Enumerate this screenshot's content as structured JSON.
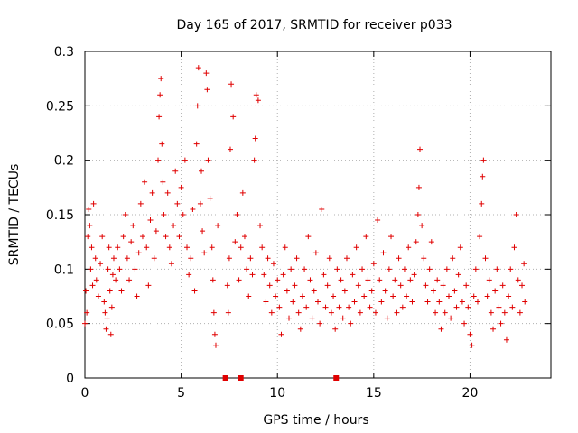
{
  "chart_data": {
    "type": "scatter",
    "title": "Day 165 of 2017, SRMTID for receiver p033",
    "xlabel": "GPS time / hours",
    "ylabel": "SRMTID / TECUs",
    "xlim": [
      0,
      24.2
    ],
    "ylim": [
      0,
      0.3
    ],
    "xticks": [
      0,
      5,
      10,
      15,
      20
    ],
    "xtick_labels": [
      "0",
      "5",
      "10",
      "15",
      "20"
    ],
    "yticks": [
      0,
      0.05,
      0.1,
      0.15,
      0.2,
      0.25,
      0.3
    ],
    "ytick_labels": [
      "0",
      "0.05",
      "0.1",
      "0.15",
      "0.2",
      "0.25",
      "0.3"
    ],
    "grid": true,
    "marker": "+",
    "color": "#e00000",
    "series": [
      {
        "name": "SRMTID",
        "points": [
          [
            0.0,
            0.05
          ],
          [
            0.05,
            0.08
          ],
          [
            0.1,
            0.06
          ],
          [
            0.15,
            0.13
          ],
          [
            0.2,
            0.155
          ],
          [
            0.25,
            0.14
          ],
          [
            0.3,
            0.1
          ],
          [
            0.35,
            0.12
          ],
          [
            0.4,
            0.085
          ],
          [
            0.45,
            0.16
          ],
          [
            0.55,
            0.11
          ],
          [
            0.6,
            0.09
          ],
          [
            0.7,
            0.075
          ],
          [
            0.8,
            0.105
          ],
          [
            0.9,
            0.13
          ],
          [
            1.0,
            0.07
          ],
          [
            1.05,
            0.06
          ],
          [
            1.1,
            0.045
          ],
          [
            1.15,
            0.055
          ],
          [
            1.2,
            0.1
          ],
          [
            1.25,
            0.12
          ],
          [
            1.3,
            0.08
          ],
          [
            1.35,
            0.04
          ],
          [
            1.4,
            0.065
          ],
          [
            1.45,
            0.095
          ],
          [
            1.5,
            0.11
          ],
          [
            1.6,
            0.09
          ],
          [
            1.7,
            0.12
          ],
          [
            1.8,
            0.1
          ],
          [
            1.9,
            0.08
          ],
          [
            2.0,
            0.13
          ],
          [
            2.1,
            0.15
          ],
          [
            2.2,
            0.11
          ],
          [
            2.3,
            0.09
          ],
          [
            2.4,
            0.125
          ],
          [
            2.5,
            0.14
          ],
          [
            2.6,
            0.1
          ],
          [
            2.7,
            0.075
          ],
          [
            2.8,
            0.115
          ],
          [
            2.9,
            0.16
          ],
          [
            3.0,
            0.13
          ],
          [
            3.1,
            0.18
          ],
          [
            3.2,
            0.12
          ],
          [
            3.3,
            0.085
          ],
          [
            3.4,
            0.145
          ],
          [
            3.5,
            0.17
          ],
          [
            3.6,
            0.11
          ],
          [
            3.7,
            0.135
          ],
          [
            3.8,
            0.2
          ],
          [
            3.85,
            0.24
          ],
          [
            3.9,
            0.26
          ],
          [
            3.95,
            0.275
          ],
          [
            4.0,
            0.215
          ],
          [
            4.05,
            0.18
          ],
          [
            4.1,
            0.15
          ],
          [
            4.2,
            0.13
          ],
          [
            4.3,
            0.17
          ],
          [
            4.4,
            0.12
          ],
          [
            4.5,
            0.105
          ],
          [
            4.6,
            0.14
          ],
          [
            4.7,
            0.19
          ],
          [
            4.8,
            0.16
          ],
          [
            4.9,
            0.13
          ],
          [
            5.0,
            0.175
          ],
          [
            5.1,
            0.15
          ],
          [
            5.2,
            0.2
          ],
          [
            5.3,
            0.12
          ],
          [
            5.4,
            0.095
          ],
          [
            5.5,
            0.11
          ],
          [
            5.6,
            0.155
          ],
          [
            5.7,
            0.08
          ],
          [
            5.8,
            0.215
          ],
          [
            5.85,
            0.25
          ],
          [
            5.9,
            0.285
          ],
          [
            6.0,
            0.16
          ],
          [
            6.05,
            0.19
          ],
          [
            6.1,
            0.135
          ],
          [
            6.2,
            0.115
          ],
          [
            6.3,
            0.28
          ],
          [
            6.35,
            0.265
          ],
          [
            6.4,
            0.2
          ],
          [
            6.5,
            0.165
          ],
          [
            6.6,
            0.12
          ],
          [
            6.65,
            0.09
          ],
          [
            6.7,
            0.06
          ],
          [
            6.75,
            0.04
          ],
          [
            6.8,
            0.03
          ],
          [
            6.9,
            0.14
          ],
          [
            7.4,
            0.085
          ],
          [
            7.45,
            0.06
          ],
          [
            7.5,
            0.11
          ],
          [
            7.55,
            0.21
          ],
          [
            7.6,
            0.27
          ],
          [
            7.7,
            0.24
          ],
          [
            7.8,
            0.125
          ],
          [
            7.9,
            0.15
          ],
          [
            8.0,
            0.09
          ],
          [
            8.1,
            0.12
          ],
          [
            8.2,
            0.17
          ],
          [
            8.3,
            0.13
          ],
          [
            8.4,
            0.1
          ],
          [
            8.5,
            0.075
          ],
          [
            8.6,
            0.11
          ],
          [
            8.7,
            0.095
          ],
          [
            8.8,
            0.2
          ],
          [
            8.85,
            0.22
          ],
          [
            8.9,
            0.26
          ],
          [
            9.0,
            0.255
          ],
          [
            9.1,
            0.14
          ],
          [
            9.2,
            0.12
          ],
          [
            9.3,
            0.095
          ],
          [
            9.4,
            0.07
          ],
          [
            9.5,
            0.11
          ],
          [
            9.6,
            0.085
          ],
          [
            9.7,
            0.06
          ],
          [
            9.8,
            0.105
          ],
          [
            9.9,
            0.075
          ],
          [
            10.0,
            0.09
          ],
          [
            10.1,
            0.065
          ],
          [
            10.2,
            0.04
          ],
          [
            10.3,
            0.095
          ],
          [
            10.4,
            0.12
          ],
          [
            10.5,
            0.08
          ],
          [
            10.6,
            0.055
          ],
          [
            10.7,
            0.1
          ],
          [
            10.8,
            0.07
          ],
          [
            10.9,
            0.085
          ],
          [
            11.0,
            0.11
          ],
          [
            11.1,
            0.06
          ],
          [
            11.2,
            0.045
          ],
          [
            11.3,
            0.075
          ],
          [
            11.4,
            0.1
          ],
          [
            11.5,
            0.065
          ],
          [
            11.6,
            0.13
          ],
          [
            11.7,
            0.09
          ],
          [
            11.8,
            0.055
          ],
          [
            11.9,
            0.08
          ],
          [
            12.0,
            0.115
          ],
          [
            12.1,
            0.07
          ],
          [
            12.2,
            0.05
          ],
          [
            12.3,
            0.155
          ],
          [
            12.4,
            0.095
          ],
          [
            12.5,
            0.065
          ],
          [
            12.6,
            0.085
          ],
          [
            12.7,
            0.11
          ],
          [
            12.8,
            0.06
          ],
          [
            12.9,
            0.075
          ],
          [
            13.0,
            0.045
          ],
          [
            13.1,
            0.1
          ],
          [
            13.2,
            0.065
          ],
          [
            13.3,
            0.09
          ],
          [
            13.4,
            0.055
          ],
          [
            13.5,
            0.08
          ],
          [
            13.6,
            0.11
          ],
          [
            13.7,
            0.065
          ],
          [
            13.8,
            0.05
          ],
          [
            13.9,
            0.095
          ],
          [
            14.0,
            0.07
          ],
          [
            14.1,
            0.12
          ],
          [
            14.2,
            0.085
          ],
          [
            14.3,
            0.06
          ],
          [
            14.4,
            0.1
          ],
          [
            14.5,
            0.075
          ],
          [
            14.6,
            0.13
          ],
          [
            14.7,
            0.09
          ],
          [
            14.8,
            0.065
          ],
          [
            14.9,
            0.08
          ],
          [
            15.0,
            0.105
          ],
          [
            15.1,
            0.06
          ],
          [
            15.2,
            0.145
          ],
          [
            15.3,
            0.09
          ],
          [
            15.4,
            0.07
          ],
          [
            15.5,
            0.115
          ],
          [
            15.6,
            0.08
          ],
          [
            15.7,
            0.055
          ],
          [
            15.8,
            0.1
          ],
          [
            15.9,
            0.13
          ],
          [
            16.0,
            0.075
          ],
          [
            16.1,
            0.09
          ],
          [
            16.2,
            0.06
          ],
          [
            16.3,
            0.11
          ],
          [
            16.4,
            0.085
          ],
          [
            16.5,
            0.065
          ],
          [
            16.6,
            0.1
          ],
          [
            16.7,
            0.075
          ],
          [
            16.8,
            0.12
          ],
          [
            16.9,
            0.09
          ],
          [
            17.0,
            0.07
          ],
          [
            17.1,
            0.095
          ],
          [
            17.2,
            0.125
          ],
          [
            17.3,
            0.15
          ],
          [
            17.35,
            0.175
          ],
          [
            17.4,
            0.21
          ],
          [
            17.5,
            0.14
          ],
          [
            17.6,
            0.11
          ],
          [
            17.7,
            0.085
          ],
          [
            17.8,
            0.07
          ],
          [
            17.9,
            0.1
          ],
          [
            18.0,
            0.125
          ],
          [
            18.1,
            0.08
          ],
          [
            18.2,
            0.06
          ],
          [
            18.3,
            0.09
          ],
          [
            18.4,
            0.07
          ],
          [
            18.5,
            0.045
          ],
          [
            18.6,
            0.085
          ],
          [
            18.7,
            0.06
          ],
          [
            18.8,
            0.1
          ],
          [
            18.9,
            0.075
          ],
          [
            19.0,
            0.055
          ],
          [
            19.1,
            0.11
          ],
          [
            19.2,
            0.08
          ],
          [
            19.3,
            0.065
          ],
          [
            19.4,
            0.095
          ],
          [
            19.5,
            0.12
          ],
          [
            19.6,
            0.07
          ],
          [
            19.7,
            0.05
          ],
          [
            19.8,
            0.085
          ],
          [
            19.9,
            0.065
          ],
          [
            20.0,
            0.04
          ],
          [
            20.1,
            0.03
          ],
          [
            20.2,
            0.075
          ],
          [
            20.3,
            0.1
          ],
          [
            20.4,
            0.07
          ],
          [
            20.5,
            0.13
          ],
          [
            20.6,
            0.16
          ],
          [
            20.65,
            0.185
          ],
          [
            20.7,
            0.2
          ],
          [
            20.8,
            0.11
          ],
          [
            20.9,
            0.075
          ],
          [
            21.0,
            0.09
          ],
          [
            21.1,
            0.06
          ],
          [
            21.2,
            0.045
          ],
          [
            21.3,
            0.08
          ],
          [
            21.4,
            0.1
          ],
          [
            21.5,
            0.065
          ],
          [
            21.6,
            0.05
          ],
          [
            21.7,
            0.085
          ],
          [
            21.8,
            0.06
          ],
          [
            21.9,
            0.035
          ],
          [
            22.0,
            0.075
          ],
          [
            22.1,
            0.1
          ],
          [
            22.2,
            0.065
          ],
          [
            22.3,
            0.12
          ],
          [
            22.4,
            0.15
          ],
          [
            22.5,
            0.09
          ],
          [
            22.6,
            0.06
          ],
          [
            22.7,
            0.085
          ],
          [
            22.8,
            0.105
          ],
          [
            22.85,
            0.07
          ]
        ]
      }
    ],
    "gaps": [
      7.3,
      8.1,
      13.05
    ]
  }
}
